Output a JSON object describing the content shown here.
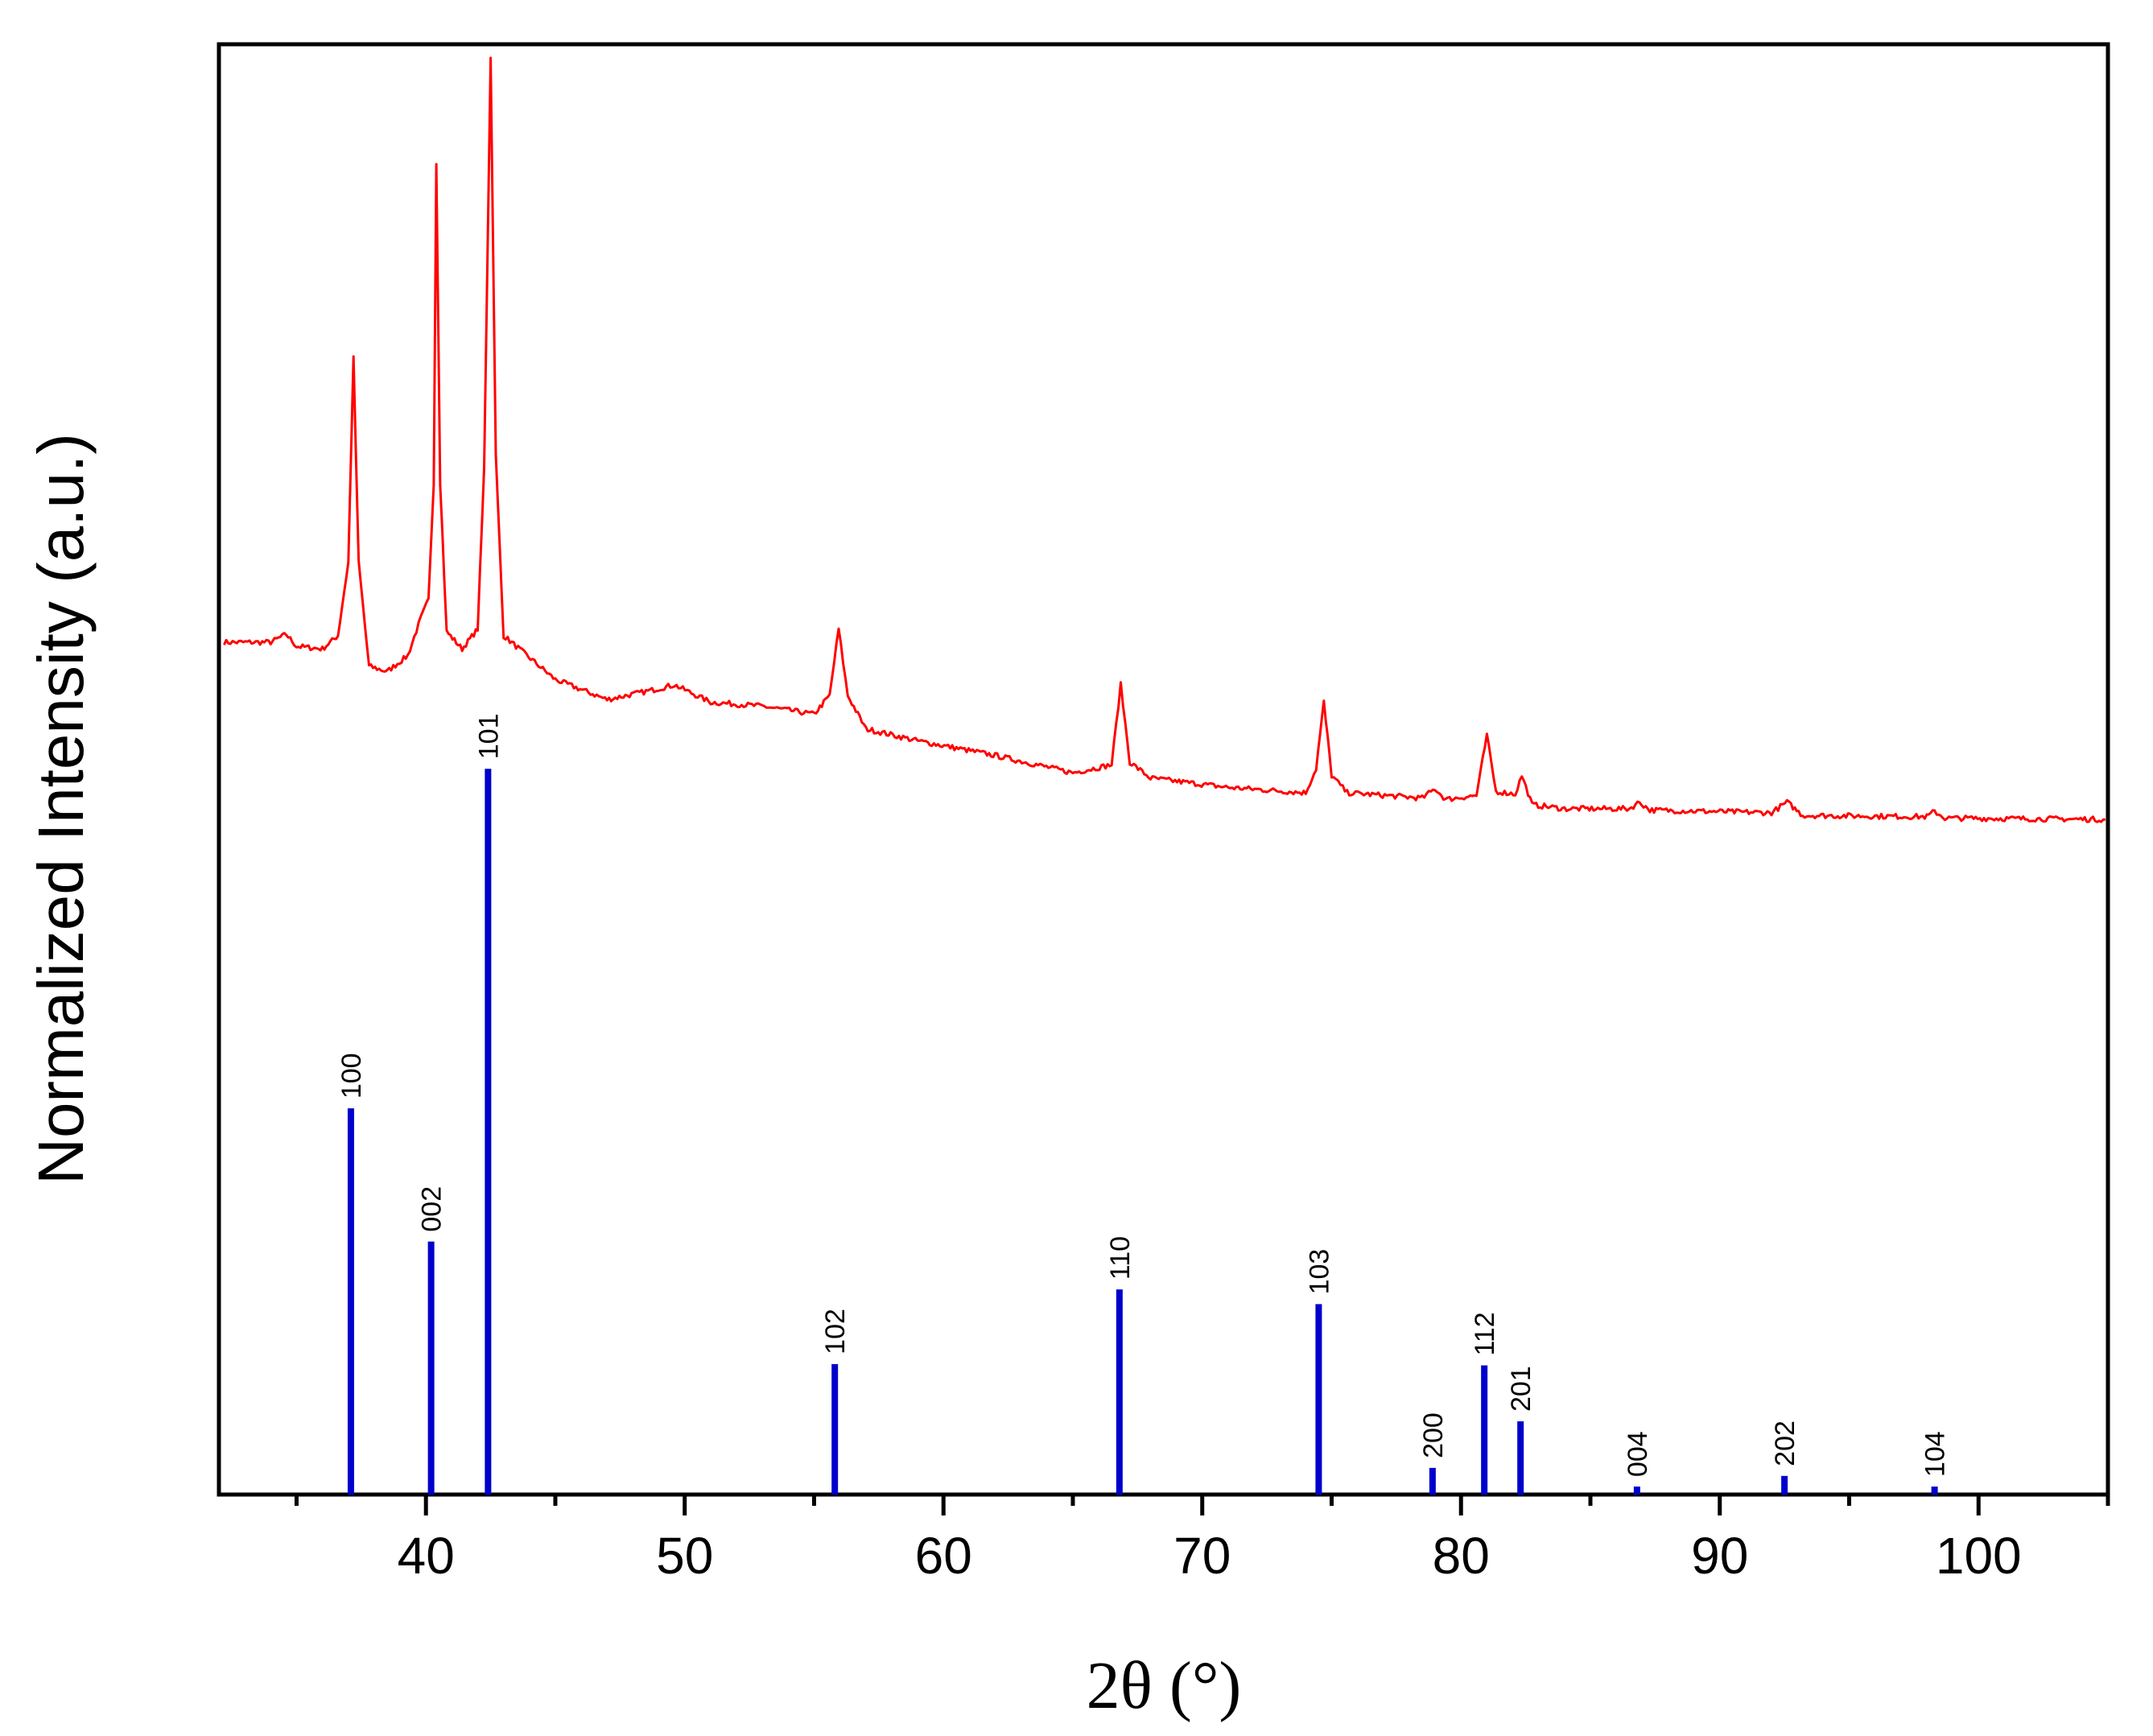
{
  "chart_data": {
    "type": "line",
    "title": "",
    "xlabel": "2θ (°)",
    "ylabel": "Normalized Intensity (a.u.)",
    "xlim": [
      32,
      105
    ],
    "ylim": [
      0,
      1.08
    ],
    "xticks": [
      40,
      50,
      60,
      70,
      80,
      90,
      100
    ],
    "xticks_minor": [
      35,
      45,
      55,
      65,
      75,
      85,
      95,
      105
    ],
    "yticks": [],
    "grid": false,
    "legend": "none",
    "colors": {
      "pattern": "#ff0000",
      "reference": "#0000cc",
      "axes": "#000000"
    },
    "series": [
      {
        "kind": "line",
        "points": [
          [
            32.2,
            0.64
          ],
          [
            34.0,
            0.64
          ],
          [
            34.6,
            0.646
          ],
          [
            35.0,
            0.637
          ],
          [
            36.0,
            0.635
          ],
          [
            36.6,
            0.645
          ],
          [
            37.0,
            0.7
          ],
          [
            37.2,
            0.853
          ],
          [
            37.4,
            0.7
          ],
          [
            37.8,
            0.622
          ],
          [
            38.5,
            0.618
          ],
          [
            39.3,
            0.63
          ],
          [
            39.8,
            0.658
          ],
          [
            40.1,
            0.672
          ],
          [
            40.3,
            0.76
          ],
          [
            40.4,
            1.0
          ],
          [
            40.55,
            0.76
          ],
          [
            40.8,
            0.648
          ],
          [
            41.4,
            0.635
          ],
          [
            42.0,
            0.65
          ],
          [
            42.25,
            0.77
          ],
          [
            42.5,
            1.08
          ],
          [
            42.7,
            0.78
          ],
          [
            43.0,
            0.645
          ],
          [
            45.0,
            0.612
          ],
          [
            47.0,
            0.597
          ],
          [
            48.5,
            0.603
          ],
          [
            49.6,
            0.608
          ],
          [
            51.0,
            0.595
          ],
          [
            53.0,
            0.592
          ],
          [
            55.0,
            0.586
          ],
          [
            55.6,
            0.6
          ],
          [
            55.95,
            0.65
          ],
          [
            56.3,
            0.6
          ],
          [
            57.0,
            0.575
          ],
          [
            59.0,
            0.566
          ],
          [
            62.0,
            0.555
          ],
          [
            65.0,
            0.542
          ],
          [
            66.5,
            0.548
          ],
          [
            66.85,
            0.608
          ],
          [
            67.2,
            0.55
          ],
          [
            68.0,
            0.538
          ],
          [
            71.0,
            0.531
          ],
          [
            74.0,
            0.527
          ],
          [
            74.4,
            0.545
          ],
          [
            74.7,
            0.595
          ],
          [
            75.0,
            0.54
          ],
          [
            75.6,
            0.527
          ],
          [
            78.5,
            0.523
          ],
          [
            79.0,
            0.53
          ],
          [
            79.4,
            0.522
          ],
          [
            80.6,
            0.525
          ],
          [
            81.0,
            0.57
          ],
          [
            81.35,
            0.528
          ],
          [
            82.1,
            0.526
          ],
          [
            82.35,
            0.54
          ],
          [
            82.75,
            0.518
          ],
          [
            84.0,
            0.515
          ],
          [
            86.5,
            0.515
          ],
          [
            86.9,
            0.52
          ],
          [
            87.3,
            0.514
          ],
          [
            92.0,
            0.512
          ],
          [
            92.6,
            0.52
          ],
          [
            93.2,
            0.51
          ],
          [
            98.0,
            0.509
          ],
          [
            98.3,
            0.513
          ],
          [
            98.7,
            0.508
          ],
          [
            104.9,
            0.507
          ]
        ]
      },
      {
        "kind": "sticks",
        "peaks": [
          {
            "x": 37.1,
            "y": 0.29,
            "label": "100"
          },
          {
            "x": 40.2,
            "y": 0.19,
            "label": "002"
          },
          {
            "x": 42.4,
            "y": 0.545,
            "label": "101"
          },
          {
            "x": 55.8,
            "y": 0.098,
            "label": "102"
          },
          {
            "x": 66.8,
            "y": 0.154,
            "label": "110"
          },
          {
            "x": 74.5,
            "y": 0.143,
            "label": "103"
          },
          {
            "x": 78.9,
            "y": 0.02,
            "label": "200"
          },
          {
            "x": 80.9,
            "y": 0.097,
            "label": "112"
          },
          {
            "x": 82.3,
            "y": 0.055,
            "label": "201"
          },
          {
            "x": 86.8,
            "y": 0.006,
            "label": "004"
          },
          {
            "x": 92.5,
            "y": 0.014,
            "label": "202"
          },
          {
            "x": 98.3,
            "y": 0.006,
            "label": "104"
          }
        ]
      }
    ]
  }
}
